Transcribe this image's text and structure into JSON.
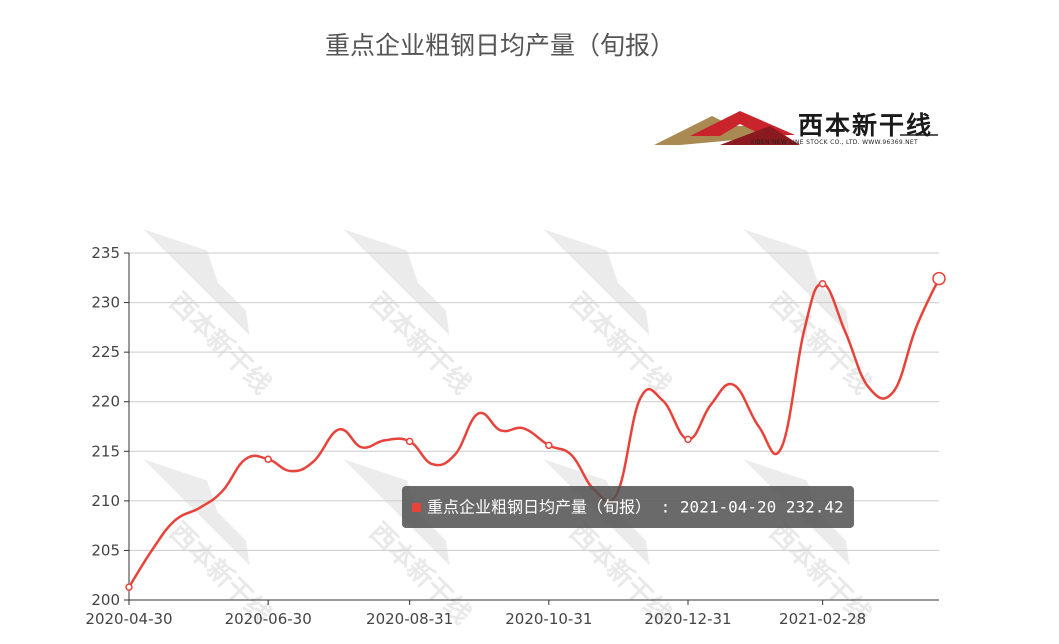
{
  "chart_data": {
    "type": "line",
    "title": "重点企业粗钢日均产量（旬报）",
    "series": [
      {
        "name": "重点企业粗钢日均产量（旬报）",
        "color": "#e8433a",
        "points": [
          [
            "2020-04-30",
            201.3
          ],
          [
            "2020-05-10",
            205.0
          ],
          [
            "2020-05-20",
            208.0
          ],
          [
            "2020-05-31",
            209.3
          ],
          [
            "2020-06-10",
            211.0
          ],
          [
            "2020-06-20",
            214.2
          ],
          [
            "2020-06-30",
            214.2
          ],
          [
            "2020-07-10",
            213.0
          ],
          [
            "2020-07-20",
            214.0
          ],
          [
            "2020-07-31",
            217.2
          ],
          [
            "2020-08-10",
            215.4
          ],
          [
            "2020-08-20",
            216.1
          ],
          [
            "2020-08-31",
            216.0
          ],
          [
            "2020-09-10",
            213.7
          ],
          [
            "2020-09-20",
            214.7
          ],
          [
            "2020-09-30",
            218.8
          ],
          [
            "2020-10-10",
            217.1
          ],
          [
            "2020-10-20",
            217.3
          ],
          [
            "2020-10-31",
            215.6
          ],
          [
            "2020-11-10",
            214.6
          ],
          [
            "2020-11-20",
            211.1
          ],
          [
            "2020-11-30",
            210.8
          ],
          [
            "2020-12-10",
            220.3
          ],
          [
            "2020-12-20",
            220.1
          ],
          [
            "2020-12-31",
            216.2
          ],
          [
            "2021-01-10",
            219.7
          ],
          [
            "2021-01-20",
            221.7
          ],
          [
            "2021-01-31",
            217.5
          ],
          [
            "2021-02-10",
            215.4
          ],
          [
            "2021-02-20",
            227.3
          ],
          [
            "2021-02-28",
            231.9
          ],
          [
            "2021-03-10",
            227.0
          ],
          [
            "2021-03-20",
            221.5
          ],
          [
            "2021-03-31",
            221.0
          ],
          [
            "2021-04-10",
            227.5
          ],
          [
            "2021-04-20",
            232.42
          ]
        ],
        "marked_dates": [
          "2020-04-30",
          "2020-06-30",
          "2020-08-31",
          "2020-10-31",
          "2020-12-31",
          "2021-02-28"
        ],
        "highlighted_date": "2021-04-20"
      }
    ],
    "x_tick_labels": [
      "2020-04-30",
      "2020-06-30",
      "2020-08-31",
      "2020-10-31",
      "2020-12-31",
      "2021-02-28"
    ],
    "y_ticks": [
      200,
      205,
      210,
      215,
      220,
      225,
      230,
      235
    ],
    "ylim": [
      200,
      235
    ],
    "grid": true,
    "tooltip": {
      "series_name": "重点企业粗钢日均产量（旬报）",
      "date": "2021-04-20",
      "value": "232.42"
    },
    "watermark_text": "西本新干线"
  },
  "logo": {
    "main_text": "西本新干线",
    "sub_text": "XIBEN NEW LINE STOCK CO., LTD.   WWW.96369.NET"
  }
}
